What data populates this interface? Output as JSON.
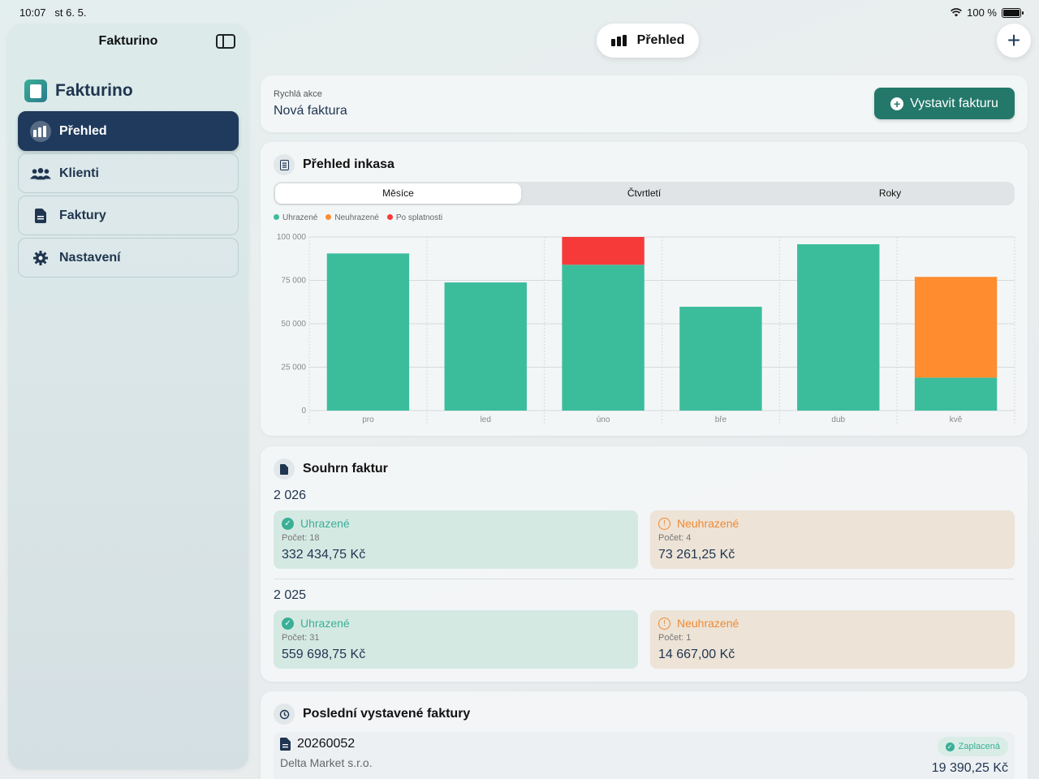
{
  "status_bar": {
    "time": "10:07",
    "date": "st 6. 5.",
    "battery": "100 %"
  },
  "sidebar": {
    "title": "Fakturino",
    "brand": "Fakturino",
    "items": [
      {
        "label": "Přehled",
        "icon": "chart-icon",
        "active": true
      },
      {
        "label": "Klienti",
        "icon": "people-icon",
        "active": false
      },
      {
        "label": "Faktury",
        "icon": "document-icon",
        "active": false
      },
      {
        "label": "Nastavení",
        "icon": "gear-icon",
        "active": false
      }
    ]
  },
  "header": {
    "title": "Přehled"
  },
  "quick_action": {
    "label": "Rychlá akce",
    "title": "Nová faktura",
    "button": "Vystavit fakturu"
  },
  "inkaso": {
    "title": "Přehled inkasa",
    "segments": [
      "Měsíce",
      "Čtvrtletí",
      "Roky"
    ],
    "legend": [
      "Uhrazené",
      "Neuhrazené",
      "Po splatnosti"
    ]
  },
  "colors": {
    "paid": "#3bbd9c",
    "unpaid": "#ff8c2e",
    "overdue": "#f63a3a",
    "accent": "#23786a",
    "nav_active": "#1f3a5c"
  },
  "chart_data": {
    "type": "bar",
    "stacked": true,
    "categories": [
      "pro",
      "led",
      "úno",
      "bře",
      "dub",
      "kvě"
    ],
    "series": [
      {
        "name": "Uhrazené",
        "values": [
          90500,
          73800,
          84000,
          59800,
          95800,
          19000
        ]
      },
      {
        "name": "Neuhrazené",
        "values": [
          0,
          0,
          0,
          0,
          0,
          58000
        ]
      },
      {
        "name": "Po splatnosti",
        "values": [
          0,
          0,
          16000,
          0,
          0,
          0
        ]
      }
    ],
    "ylim": [
      0,
      100000
    ],
    "yticks": [
      "100 000",
      "75 000",
      "50 000",
      "25 000",
      "0"
    ],
    "grid": true,
    "legend_position": "top-left"
  },
  "souhrn": {
    "title": "Souhrn faktur",
    "years": [
      {
        "year": "2 026",
        "paid": {
          "label": "Uhrazené",
          "count": "Počet: 18",
          "amount": "332 434,75 Kč"
        },
        "unpaid": {
          "label": "Neuhrazené",
          "count": "Počet: 4",
          "amount": "73 261,25 Kč"
        }
      },
      {
        "year": "2 025",
        "paid": {
          "label": "Uhrazené",
          "count": "Počet: 31",
          "amount": "559 698,75 Kč"
        },
        "unpaid": {
          "label": "Neuhrazené",
          "count": "Počet: 1",
          "amount": "14 667,00 Kč"
        }
      }
    ]
  },
  "recent": {
    "title": "Poslední vystavené faktury",
    "invoices": [
      {
        "number": "20260052",
        "client": "Delta Market s.r.o.",
        "status": "Zaplacená",
        "amount": "19 390,25 Kč"
      }
    ]
  }
}
